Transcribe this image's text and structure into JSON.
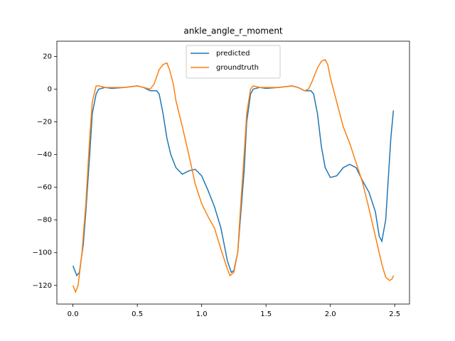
{
  "chart_data": {
    "type": "line",
    "title": "ankle_angle_r_moment",
    "legend": "upper center",
    "xlim": [
      -0.125,
      2.615
    ],
    "ylim": [
      -131.4,
      29.3
    ],
    "xticks": [
      {
        "value": 0,
        "label": "0.0"
      },
      {
        "value": 0.5,
        "label": "0.5"
      },
      {
        "value": 1,
        "label": "1.0"
      },
      {
        "value": 1.5,
        "label": "1.5"
      },
      {
        "value": 2,
        "label": "2.0"
      },
      {
        "value": 2.5,
        "label": "2.5"
      }
    ],
    "yticks": [
      {
        "value": -120,
        "label": "−120"
      },
      {
        "value": -100,
        "label": "−100"
      },
      {
        "value": -80,
        "label": "−80"
      },
      {
        "value": -60,
        "label": "−60"
      },
      {
        "value": -40,
        "label": "−40"
      },
      {
        "value": -20,
        "label": "−20"
      },
      0,
      20
    ],
    "series": [
      {
        "name": "predicted",
        "color": "#1f77b4",
        "x": [
          0,
          0.03,
          0.05,
          0.08,
          0.1,
          0.13,
          0.15,
          0.18,
          0.2,
          0.25,
          0.3,
          0.4,
          0.5,
          0.55,
          0.6,
          0.65,
          0.67,
          0.7,
          0.73,
          0.76,
          0.8,
          0.85,
          0.9,
          0.95,
          1.0,
          1.05,
          1.1,
          1.15,
          1.2,
          1.23,
          1.25,
          1.28,
          1.3,
          1.33,
          1.35,
          1.38,
          1.4,
          1.45,
          1.5,
          1.6,
          1.7,
          1.75,
          1.8,
          1.85,
          1.87,
          1.9,
          1.93,
          1.96,
          2.0,
          2.05,
          2.1,
          2.15,
          2.2,
          2.25,
          2.3,
          2.35,
          2.38,
          2.4,
          2.43,
          2.45,
          2.47,
          2.49
        ],
        "values": [
          -108,
          -114,
          -112,
          -95,
          -75,
          -40,
          -15,
          -3,
          0,
          1,
          0.5,
          1,
          2,
          1,
          -1,
          -1,
          -3,
          -15,
          -30,
          -40,
          -48,
          -52,
          -50,
          -49,
          -53,
          -62,
          -72,
          -85,
          -105,
          -112,
          -111,
          -100,
          -80,
          -50,
          -20,
          -3,
          0,
          1,
          0.5,
          1,
          2,
          1,
          -1,
          -1,
          -3,
          -15,
          -35,
          -48,
          -54,
          -53,
          -48,
          -46,
          -48,
          -56,
          -63,
          -75,
          -90,
          -93,
          -80,
          -55,
          -30,
          -13
        ]
      },
      {
        "name": "groundtruth",
        "color": "#ff7f0e",
        "x": [
          0,
          0.02,
          0.04,
          0.07,
          0.1,
          0.13,
          0.15,
          0.18,
          0.2,
          0.25,
          0.3,
          0.4,
          0.5,
          0.55,
          0.6,
          0.63,
          0.67,
          0.7,
          0.73,
          0.75,
          0.78,
          0.8,
          0.85,
          0.9,
          0.95,
          1.0,
          1.05,
          1.1,
          1.15,
          1.2,
          1.22,
          1.25,
          1.28,
          1.3,
          1.33,
          1.35,
          1.38,
          1.4,
          1.45,
          1.5,
          1.6,
          1.7,
          1.75,
          1.8,
          1.83,
          1.86,
          1.9,
          1.93,
          1.96,
          1.98,
          2.0,
          2.05,
          2.1,
          2.15,
          2.2,
          2.25,
          2.3,
          2.35,
          2.4,
          2.43,
          2.46,
          2.48,
          2.49
        ],
        "values": [
          -120,
          -124,
          -120,
          -100,
          -70,
          -30,
          -8,
          2,
          2,
          1,
          1,
          1,
          2,
          1,
          0,
          3,
          12,
          15,
          16,
          12,
          3,
          -7,
          -23,
          -40,
          -58,
          -70,
          -78,
          -85,
          -98,
          -110,
          -114,
          -112,
          -100,
          -75,
          -40,
          -15,
          0,
          2,
          1,
          1,
          1,
          2,
          1,
          -1,
          0,
          5,
          13,
          17,
          18,
          15,
          7,
          -8,
          -23,
          -33,
          -45,
          -57,
          -73,
          -90,
          -107,
          -115,
          -117,
          -116,
          -114
        ]
      }
    ]
  }
}
